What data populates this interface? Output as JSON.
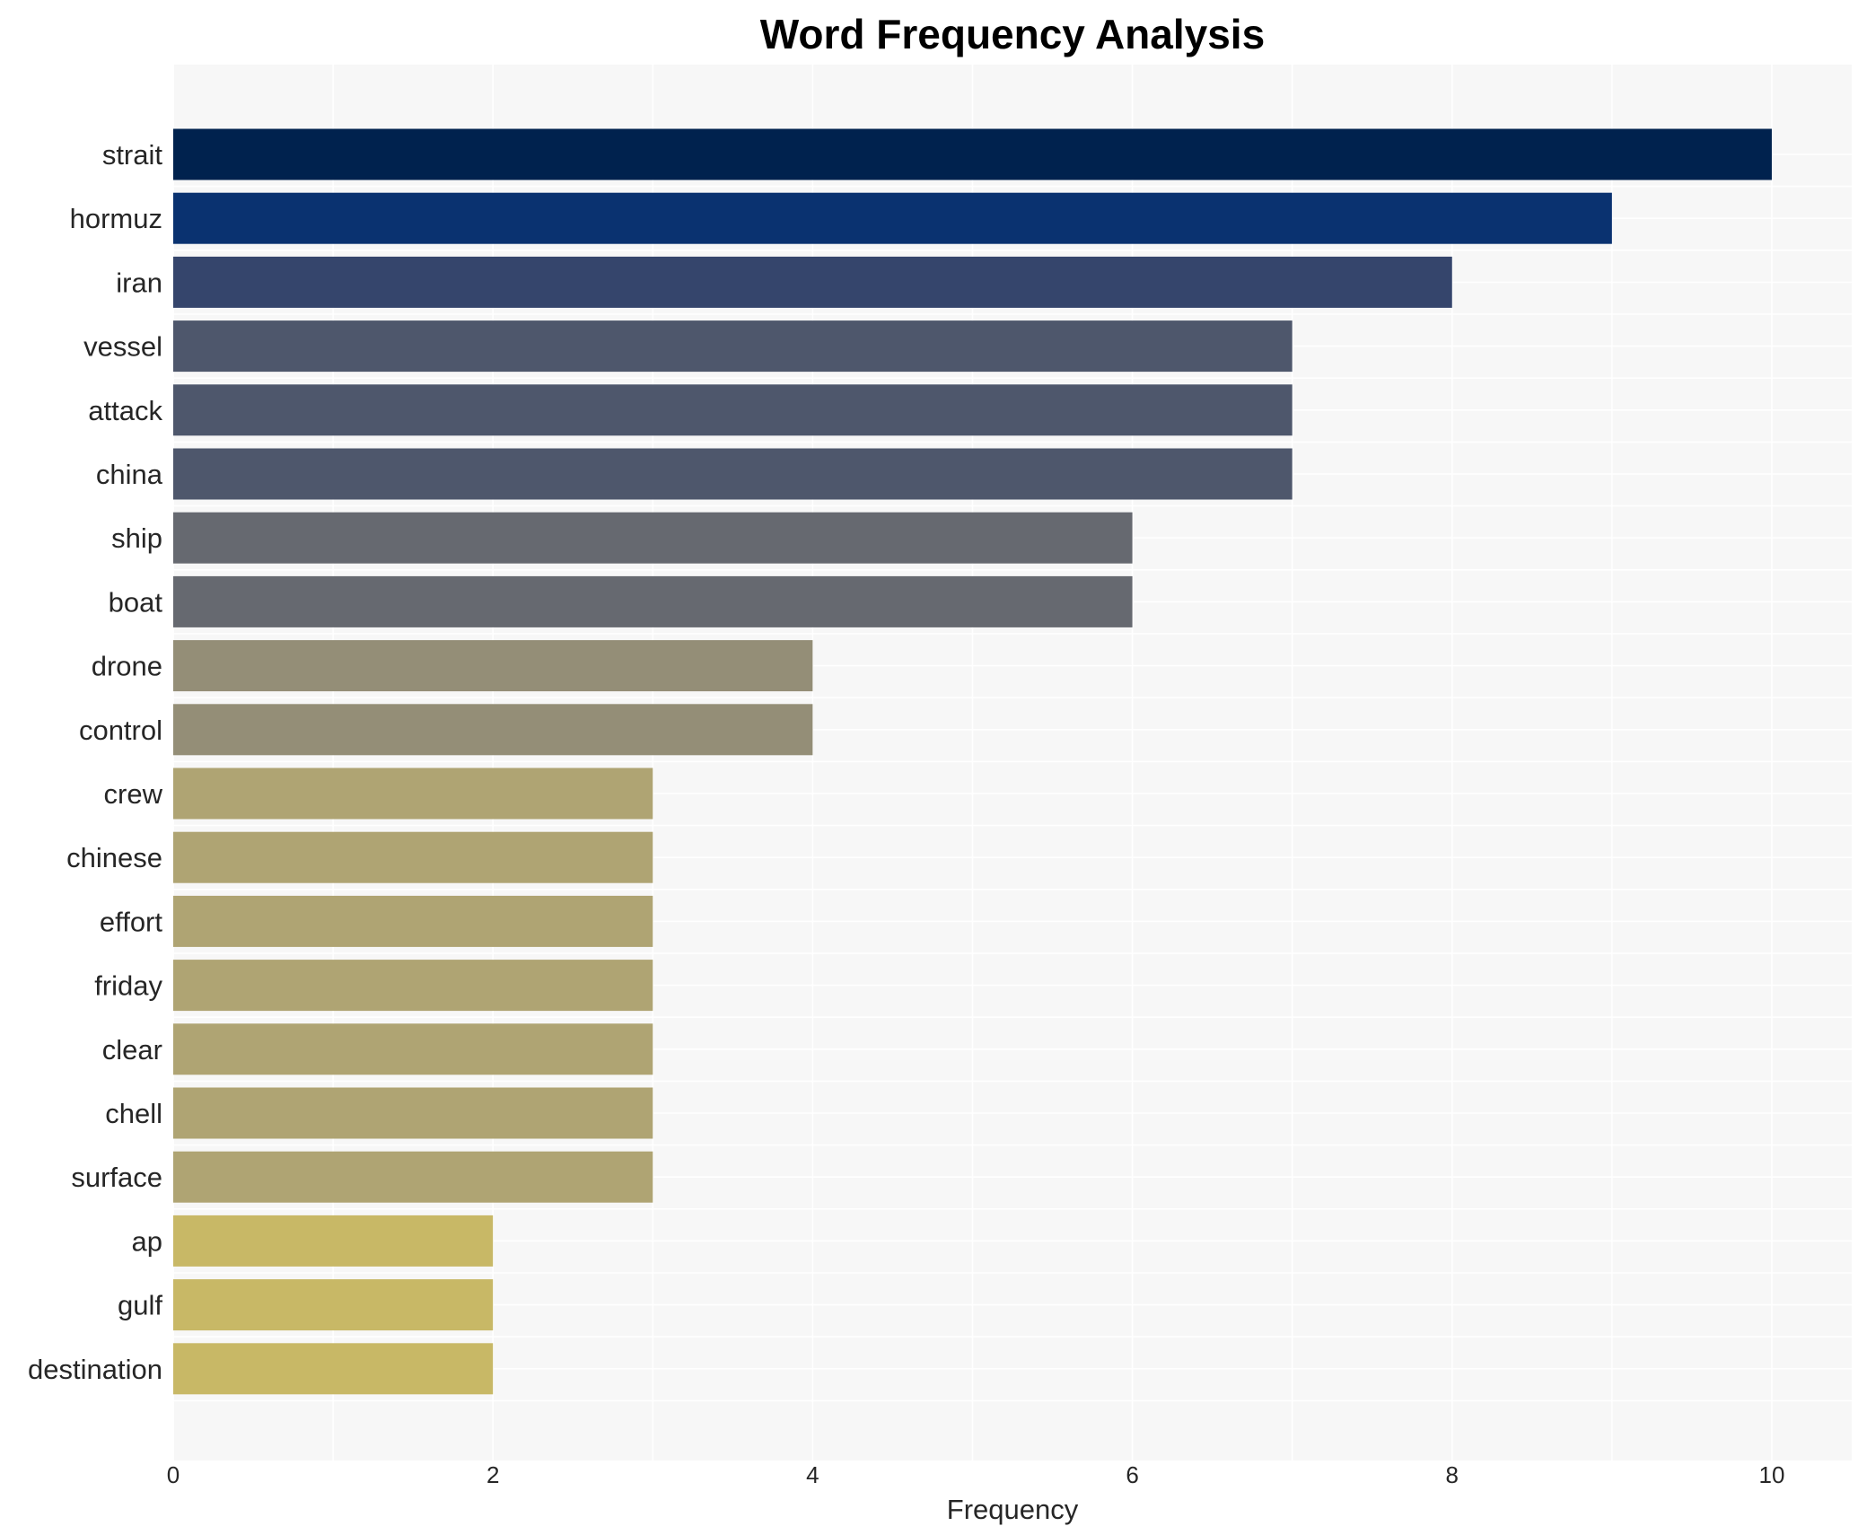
{
  "chart_data": {
    "type": "bar",
    "orientation": "horizontal",
    "title": "Word Frequency Analysis",
    "xlabel": "Frequency",
    "ylabel": "",
    "xlim": [
      0,
      10.5
    ],
    "xticks": [
      0,
      2,
      4,
      6,
      8,
      10
    ],
    "grid": true,
    "categories": [
      "strait",
      "hormuz",
      "iran",
      "vessel",
      "attack",
      "china",
      "ship",
      "boat",
      "drone",
      "control",
      "crew",
      "chinese",
      "effort",
      "friday",
      "clear",
      "chell",
      "surface",
      "ap",
      "gulf",
      "destination"
    ],
    "values": [
      10,
      9,
      8,
      7,
      7,
      7,
      6,
      6,
      4,
      4,
      3,
      3,
      3,
      3,
      3,
      3,
      3,
      2,
      2,
      2
    ],
    "colors": [
      "#00224e",
      "#0a3270",
      "#35456c",
      "#4e576c",
      "#4e576c",
      "#4e576c",
      "#666970",
      "#666970",
      "#948e77",
      "#948e77",
      "#afa473",
      "#afa473",
      "#afa473",
      "#afa473",
      "#afa473",
      "#afa473",
      "#afa473",
      "#c8b866",
      "#c8b866",
      "#c8b866"
    ],
    "plot_background": "#f7f7f7"
  }
}
